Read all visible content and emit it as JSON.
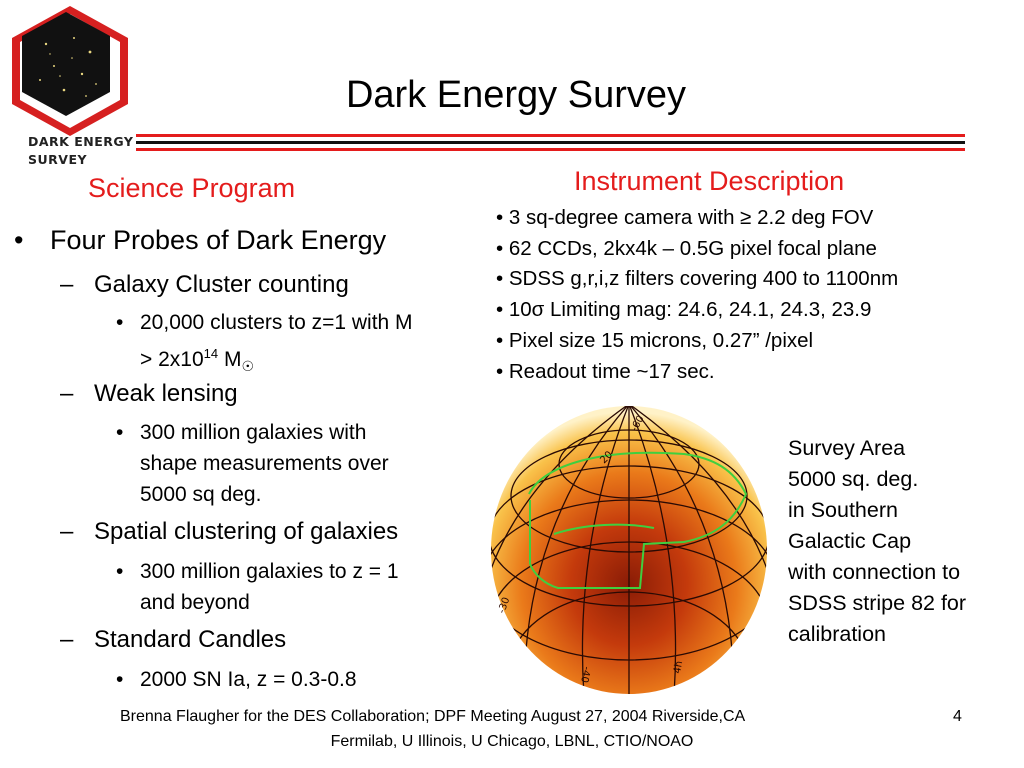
{
  "logo": {
    "line1": "DARK ENERGY",
    "line2": "SURVEY"
  },
  "title": "Dark Energy Survey",
  "science": {
    "heading": "Science Program",
    "probes_title": "Four Probes of Dark Energy",
    "probes": [
      {
        "name": "Galaxy Cluster counting",
        "detail": [
          "20,000 clusters to z=1 with M",
          "> 2x10",
          "14",
          " M",
          "☉"
        ]
      },
      {
        "name": "Weak lensing",
        "detail": [
          "300 million galaxies with",
          "shape measurements over",
          "5000 sq deg."
        ]
      },
      {
        "name": "Spatial clustering of galaxies",
        "detail": [
          "300 million galaxies to z = 1",
          "and beyond"
        ]
      },
      {
        "name": "Standard Candles",
        "detail": [
          "2000 SN Ia, z = 0.3-0.8"
        ]
      }
    ]
  },
  "instrument": {
    "heading": "Instrument Description",
    "items": [
      "• 3 sq-degree camera with ≥ 2.2 deg FOV",
      "• 62 CCDs, 2kx4k – 0.5G pixel focal plane",
      "• SDSS g,r,i,z filters covering 400 to 1100nm",
      "• 10σ Limiting mag: 24.6, 24.1, 24.3, 23.9",
      "• Pixel size 15 microns, 0.27” /pixel",
      "• Readout time ~17 sec."
    ]
  },
  "survey": {
    "lines": [
      "Survey Area",
      "5000 sq. deg.",
      "in Southern",
      "Galactic Cap",
      "with connection to",
      "SDSS stripe 82 for",
      "calibration"
    ]
  },
  "map_labels": {
    "l1": "-30",
    "l2": "-60",
    "l3": "-40",
    "l4": "4h",
    "l5": "20"
  },
  "footer": {
    "line1": "Brenna Flaugher for the DES Collaboration;   DPF Meeting August 27, 2004 Riverside,CA",
    "page": "4",
    "line2": "Fermilab, U Illinois, U Chicago, LBNL, CTIO/NOAO"
  },
  "colors": {
    "accent_red": "#e41c1c",
    "grid_green": "#3fcf3f"
  }
}
